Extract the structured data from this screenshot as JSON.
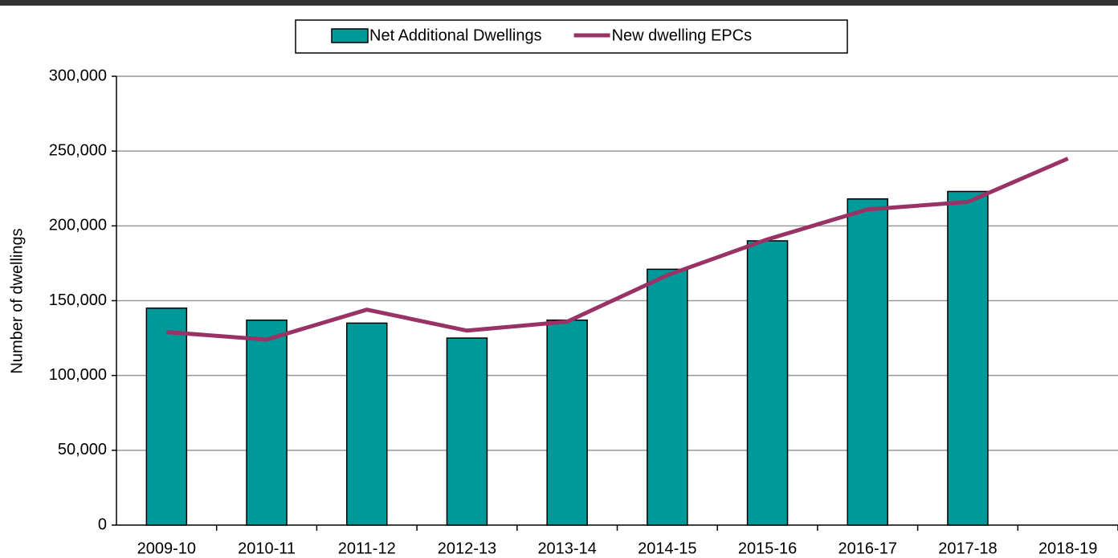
{
  "chart_data": {
    "type": "bar_line",
    "ylabel": "Number  of dwellings",
    "categories": [
      "2009-10",
      "2010-11",
      "2011-12",
      "2012-13",
      "2013-14",
      "2014-15",
      "2015-16",
      "2016-17",
      "2017-18",
      "2018-19"
    ],
    "series": [
      {
        "name": "Net Additional Dwellings",
        "type": "bar",
        "color": "#009999",
        "values": [
          145000,
          137000,
          135000,
          125000,
          137000,
          171000,
          190000,
          218000,
          223000,
          null
        ]
      },
      {
        "name": "New dwelling EPCs",
        "type": "line",
        "color": "#993366",
        "values": [
          129000,
          124000,
          144000,
          130000,
          136000,
          167000,
          191000,
          211000,
          216000,
          245000
        ]
      }
    ],
    "ylim": [
      0,
      300000
    ],
    "yticks": [
      0,
      {
        "value": 50000,
        "label": "50,000"
      },
      {
        "value": 100000,
        "label": "100,000"
      },
      {
        "value": 150000,
        "label": "150,000"
      },
      {
        "value": 200000,
        "label": "200,000"
      },
      {
        "value": 250000,
        "label": "250,000"
      },
      {
        "value": 300000,
        "label": "300,000"
      }
    ],
    "grid": true,
    "legend": "top"
  }
}
